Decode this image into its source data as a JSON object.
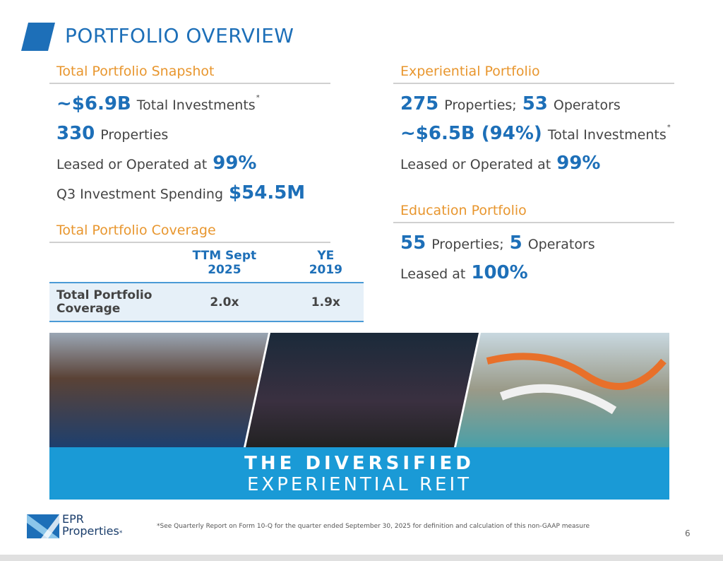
{
  "header": {
    "title": "PORTFOLIO OVERVIEW"
  },
  "snapshot": {
    "heading": "Total Portfolio Snapshot",
    "lines": [
      [
        {
          "text": "~$6.9B",
          "style": "value"
        },
        {
          "text": "Total Investments",
          "style": "label"
        },
        {
          "text": "*",
          "style": "note"
        }
      ],
      [
        {
          "text": "330",
          "style": "value"
        },
        {
          "text": "Properties",
          "style": "label"
        }
      ],
      [
        {
          "text": "Leased or Operated at",
          "style": "label"
        },
        {
          "text": "99%",
          "style": "value"
        }
      ],
      [
        {
          "text": "Q3 Investment Spending",
          "style": "label"
        },
        {
          "text": "$54.5M",
          "style": "value"
        }
      ]
    ]
  },
  "coverage": {
    "heading": "Total Portfolio Coverage",
    "columns": [
      "TTM Sept 2025",
      "YE 2019"
    ],
    "rows": [
      {
        "label": "Total Portfolio Coverage",
        "values": [
          "2.0x",
          "1.9x"
        ]
      }
    ]
  },
  "experiential": {
    "heading": "Experiential Portfolio",
    "lines": [
      [
        {
          "text": "275",
          "style": "value"
        },
        {
          "text": "Properties;",
          "style": "label"
        },
        {
          "text": "53",
          "style": "value"
        },
        {
          "text": "Operators",
          "style": "label"
        }
      ],
      [
        {
          "text": "~$6.5B (94%)",
          "style": "value"
        },
        {
          "text": "Total Investments",
          "style": "label"
        },
        {
          "text": "*",
          "style": "note"
        }
      ],
      [
        {
          "text": "Leased or Operated at",
          "style": "label"
        },
        {
          "text": "99%",
          "style": "value"
        }
      ]
    ]
  },
  "education": {
    "heading": "Education Portfolio",
    "lines": [
      [
        {
          "text": "55",
          "style": "value"
        },
        {
          "text": "Properties;",
          "style": "label"
        },
        {
          "text": "5",
          "style": "value"
        },
        {
          "text": "Operators",
          "style": "label"
        }
      ],
      [
        {
          "text": "Leased at",
          "style": "label"
        },
        {
          "text": "100%",
          "style": "value"
        }
      ]
    ]
  },
  "banner": {
    "line1": "THE DIVERSIFIED",
    "line2": "EXPERIENTIAL REIT"
  },
  "footer": {
    "logo_top": "EPR",
    "logo_bottom": "Properties",
    "logo_mark": "*",
    "footnote": "*See Quarterly Report on Form 10-Q for the quarter ended September 30, 2025 for definition and calculation of this non-GAAP measure",
    "page_number": 6
  }
}
